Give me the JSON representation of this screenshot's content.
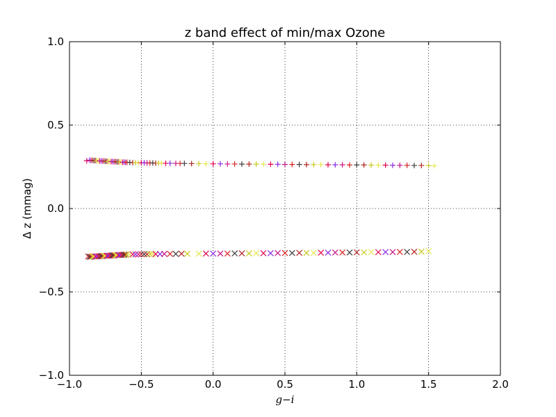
{
  "chart_data": {
    "type": "scatter",
    "title": "z band effect of min/max Ozone",
    "xlabel": "g−i",
    "ylabel": "Δ z (mmag)",
    "xlim": [
      -1.0,
      2.0
    ],
    "ylim": [
      -1.0,
      1.0
    ],
    "xticks": [
      -1.0,
      -0.5,
      0.0,
      0.5,
      1.0,
      1.5,
      2.0
    ],
    "xtick_labels": [
      "−1.0",
      "−0.5",
      "0.0",
      "0.5",
      "1.0",
      "1.5",
      "2.0"
    ],
    "yticks": [
      -1.0,
      -0.5,
      0.0,
      0.5,
      1.0
    ],
    "ytick_labels": [
      "−1.0",
      "−0.5",
      "0.0",
      "0.5",
      "1.0"
    ],
    "grid": true,
    "marker_colors": [
      "#e4004d",
      "#d62020",
      "#c8c820",
      "#8a2be2",
      "#3d3d3d",
      "#e6e651",
      "#c71585",
      "#b22222"
    ],
    "series": [
      {
        "marker": "plus",
        "x": [
          -0.88,
          -0.86,
          -0.85,
          -0.84,
          -0.83,
          -0.82,
          -0.81,
          -0.8,
          -0.79,
          -0.78,
          -0.77,
          -0.76,
          -0.75,
          -0.74,
          -0.73,
          -0.72,
          -0.71,
          -0.7,
          -0.69,
          -0.68,
          -0.67,
          -0.66,
          -0.65,
          -0.64,
          -0.63,
          -0.62,
          -0.61,
          -0.6,
          -0.58,
          -0.56,
          -0.54,
          -0.52,
          -0.5,
          -0.48,
          -0.46,
          -0.44,
          -0.42,
          -0.4,
          -0.38,
          -0.36,
          -0.33,
          -0.3,
          -0.26,
          -0.23,
          -0.2,
          -0.15,
          -0.1,
          -0.05,
          0.0,
          0.05,
          0.1,
          0.15,
          0.2,
          0.25,
          0.3,
          0.35,
          0.4,
          0.45,
          0.5,
          0.55,
          0.6,
          0.65,
          0.7,
          0.75,
          0.8,
          0.85,
          0.9,
          0.95,
          1.0,
          1.05,
          1.1,
          1.15,
          1.2,
          1.25,
          1.3,
          1.35,
          1.4,
          1.45,
          1.5,
          1.54
        ],
        "y": [
          0.286,
          0.29,
          0.288,
          0.289,
          0.287,
          0.288,
          0.286,
          0.287,
          0.285,
          0.286,
          0.284,
          0.285,
          0.283,
          0.284,
          0.282,
          0.283,
          0.281,
          0.282,
          0.28,
          0.281,
          0.279,
          0.28,
          0.278,
          0.279,
          0.277,
          0.278,
          0.276,
          0.277,
          0.276,
          0.275,
          0.275,
          0.274,
          0.274,
          0.274,
          0.273,
          0.273,
          0.273,
          0.272,
          0.272,
          0.272,
          0.271,
          0.271,
          0.27,
          0.27,
          0.27,
          0.269,
          0.269,
          0.268,
          0.268,
          0.268,
          0.267,
          0.267,
          0.266,
          0.266,
          0.266,
          0.265,
          0.265,
          0.265,
          0.264,
          0.264,
          0.264,
          0.263,
          0.263,
          0.263,
          0.262,
          0.262,
          0.262,
          0.261,
          0.261,
          0.261,
          0.26,
          0.26,
          0.26,
          0.259,
          0.259,
          0.259,
          0.258,
          0.258,
          0.257,
          0.256
        ]
      },
      {
        "marker": "x",
        "x": [
          -0.87,
          -0.86,
          -0.85,
          -0.84,
          -0.83,
          -0.82,
          -0.81,
          -0.8,
          -0.79,
          -0.78,
          -0.77,
          -0.76,
          -0.75,
          -0.74,
          -0.73,
          -0.72,
          -0.71,
          -0.7,
          -0.69,
          -0.68,
          -0.67,
          -0.66,
          -0.65,
          -0.64,
          -0.63,
          -0.62,
          -0.61,
          -0.6,
          -0.58,
          -0.56,
          -0.54,
          -0.52,
          -0.5,
          -0.48,
          -0.46,
          -0.44,
          -0.42,
          -0.4,
          -0.37,
          -0.34,
          -0.3,
          -0.26,
          -0.22,
          -0.18,
          -0.1,
          -0.05,
          0.0,
          0.05,
          0.1,
          0.15,
          0.2,
          0.25,
          0.3,
          0.35,
          0.4,
          0.45,
          0.5,
          0.55,
          0.6,
          0.65,
          0.7,
          0.75,
          0.8,
          0.85,
          0.9,
          0.95,
          1.0,
          1.05,
          1.1,
          1.15,
          1.2,
          1.25,
          1.3,
          1.35,
          1.4,
          1.45,
          1.5
        ],
        "y": [
          -0.287,
          -0.29,
          -0.289,
          -0.288,
          -0.288,
          -0.287,
          -0.287,
          -0.286,
          -0.286,
          -0.285,
          -0.285,
          -0.284,
          -0.284,
          -0.283,
          -0.283,
          -0.282,
          -0.282,
          -0.281,
          -0.281,
          -0.28,
          -0.28,
          -0.279,
          -0.279,
          -0.278,
          -0.278,
          -0.277,
          -0.277,
          -0.276,
          -0.276,
          -0.275,
          -0.275,
          -0.275,
          -0.274,
          -0.274,
          -0.274,
          -0.273,
          -0.273,
          -0.273,
          -0.273,
          -0.272,
          -0.272,
          -0.272,
          -0.271,
          -0.271,
          -0.271,
          -0.27,
          -0.27,
          -0.27,
          -0.27,
          -0.269,
          -0.269,
          -0.269,
          -0.268,
          -0.268,
          -0.268,
          -0.267,
          -0.267,
          -0.267,
          -0.266,
          -0.266,
          -0.266,
          -0.265,
          -0.265,
          -0.264,
          -0.264,
          -0.264,
          -0.263,
          -0.263,
          -0.262,
          -0.262,
          -0.261,
          -0.261,
          -0.26,
          -0.26,
          -0.259,
          -0.258,
          -0.256
        ]
      }
    ]
  }
}
